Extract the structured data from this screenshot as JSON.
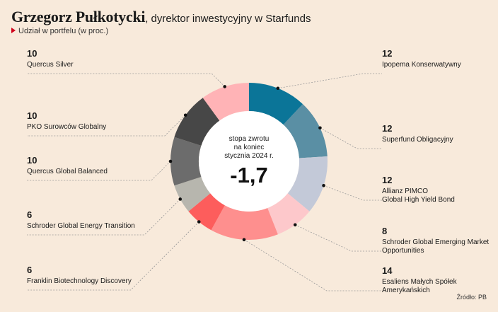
{
  "header": {
    "title_bold": "Grzegorz Pułkotycki",
    "title_rest": ", dyrektor inwestycyjny w Starfunds",
    "subtitle": "Udział w portfelu (w proc.)"
  },
  "center": {
    "caption_lines": [
      "stopa zwrotu",
      "na koniec",
      "stycznia 2024 r."
    ],
    "value": "-1,7"
  },
  "source": "Źródło: PB",
  "chart_data": {
    "type": "pie",
    "variant": "donut",
    "start": "top",
    "direction": "clockwise",
    "unit": "%",
    "slices": [
      {
        "label": "Ipopema Konserwatywny",
        "value": 12,
        "color": "#0b7598",
        "side": "right"
      },
      {
        "label": "Superfund Obligacyjny",
        "value": 12,
        "color": "#5a8fa4",
        "side": "right"
      },
      {
        "label": "Allianz PIMCO\nGlobal High Yield Bond",
        "value": 12,
        "color": "#c3c9d8",
        "side": "right"
      },
      {
        "label": "Schroder Global Emerging Market\nOpportunities",
        "value": 8,
        "color": "#fdc8cb",
        "side": "right"
      },
      {
        "label": "Esaliens Małych Spółek\nAmerykańskich",
        "value": 14,
        "color": "#fe8f8e",
        "side": "right"
      },
      {
        "label": "Franklin Biotechnology Discovery",
        "value": 6,
        "color": "#fd5d5c",
        "side": "left"
      },
      {
        "label": "Schroder Global Energy Transition",
        "value": 6,
        "color": "#b7b6ae",
        "side": "left"
      },
      {
        "label": "Quercus Global Balanced",
        "value": 10,
        "color": "#6c6c6c",
        "side": "left"
      },
      {
        "label": "PKO Surowców Globalny",
        "value": 10,
        "color": "#474747",
        "side": "left"
      },
      {
        "label": "Quercus Silver",
        "value": 10,
        "color": "#ffb3b6",
        "side": "left"
      }
    ]
  }
}
